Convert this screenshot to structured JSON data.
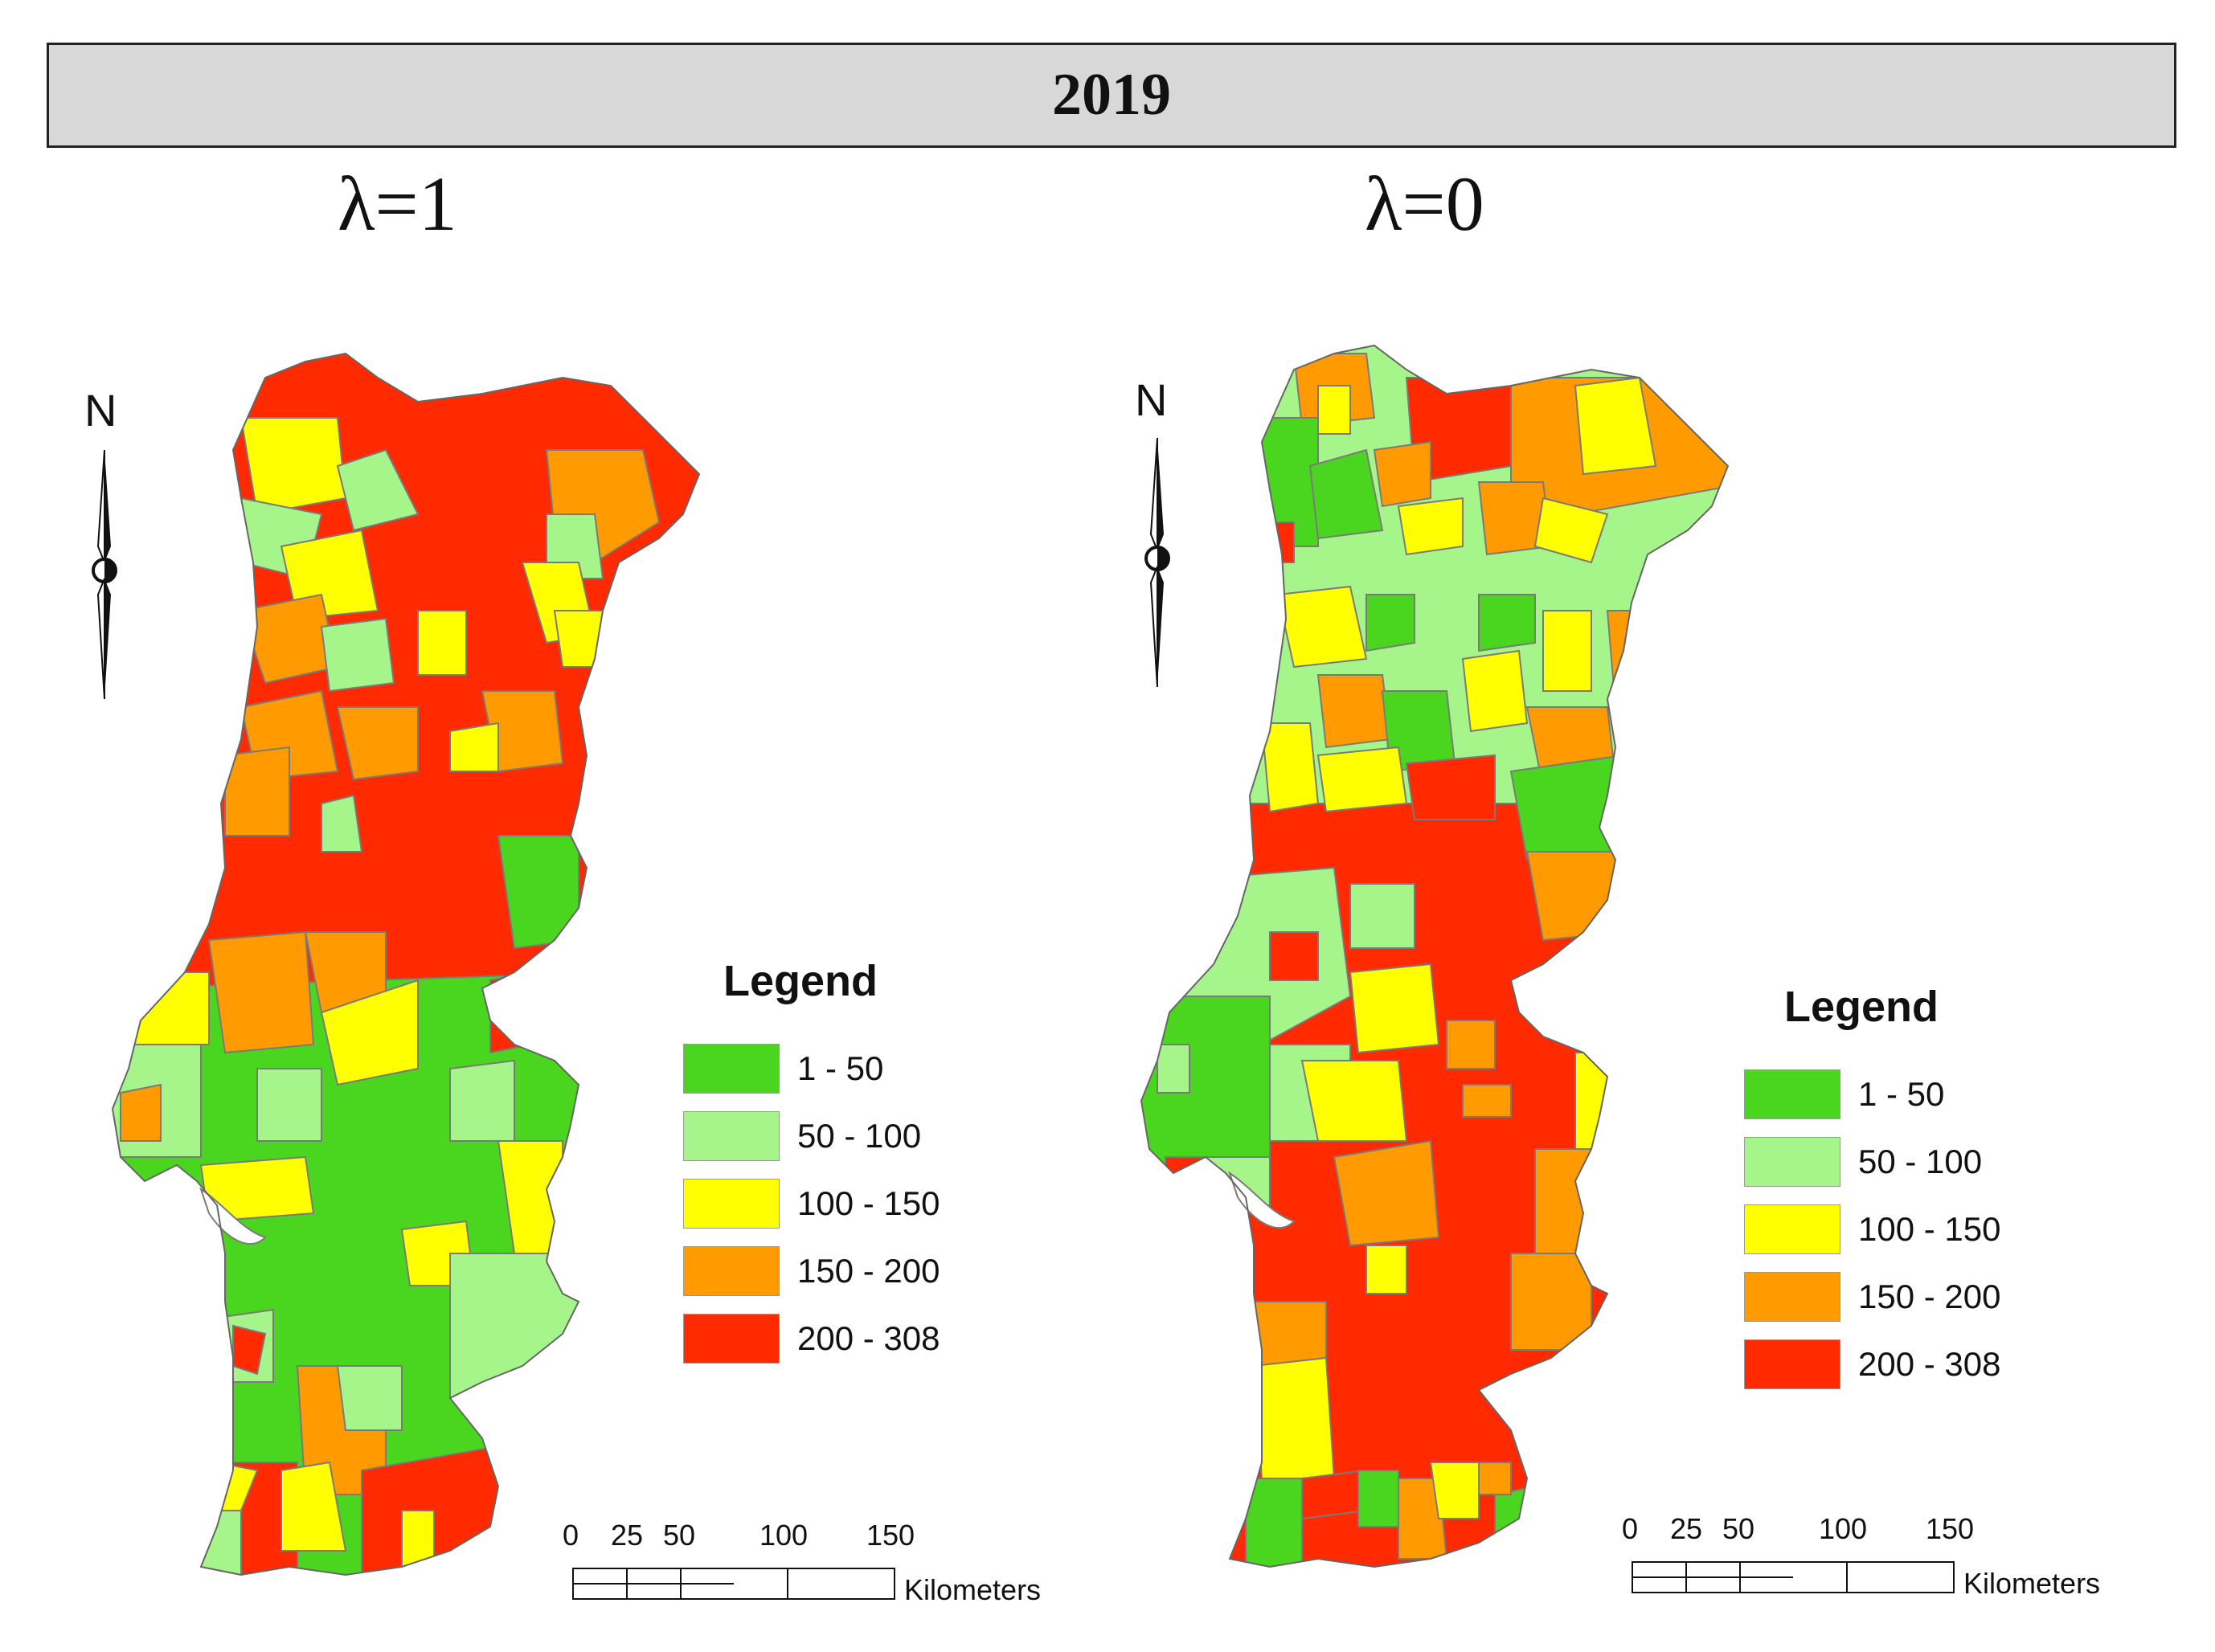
{
  "title": "2019",
  "colors": {
    "c1": "#4ad61f",
    "c2": "#a6f58a",
    "c3": "#ffff00",
    "c4": "#ff9b00",
    "c5": "#ff2a00"
  },
  "panels": [
    {
      "heading": "λ=1",
      "north": "N",
      "legend": {
        "title": "Legend",
        "items": [
          {
            "label": "1 - 50",
            "color": "#4ad61f"
          },
          {
            "label": "50 - 100",
            "color": "#a6f58a"
          },
          {
            "label": "100 - 150",
            "color": "#ffff00"
          },
          {
            "label": "150 - 200",
            "color": "#ff9b00"
          },
          {
            "label": "200 - 308",
            "color": "#ff2a00"
          }
        ]
      },
      "scale": {
        "ticks": [
          "0",
          "25",
          "50",
          "100",
          "150"
        ],
        "unit": "Kilometers"
      }
    },
    {
      "heading": "λ=0",
      "north": "N",
      "legend": {
        "title": "Legend",
        "items": [
          {
            "label": "1 - 50",
            "color": "#4ad61f"
          },
          {
            "label": "50 - 100",
            "color": "#a6f58a"
          },
          {
            "label": "100 - 150",
            "color": "#ffff00"
          },
          {
            "label": "150 - 200",
            "color": "#ff9b00"
          },
          {
            "label": "200 - 308",
            "color": "#ff2a00"
          }
        ]
      },
      "scale": {
        "ticks": [
          "0",
          "25",
          "50",
          "100",
          "150"
        ],
        "unit": "Kilometers"
      }
    }
  ]
}
